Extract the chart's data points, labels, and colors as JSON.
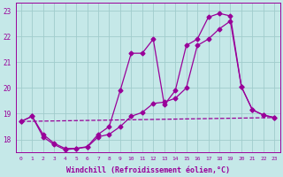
{
  "xlabel": "Windchill (Refroidissement éolien,°C)",
  "bg_color": "#c5e8e8",
  "line_color": "#990099",
  "grid_color": "#a0cccc",
  "xlim": [
    -0.5,
    23.5
  ],
  "ylim": [
    17.5,
    23.3
  ],
  "yticks": [
    18,
    19,
    20,
    21,
    22,
    23
  ],
  "xticks": [
    0,
    1,
    2,
    3,
    4,
    5,
    6,
    7,
    8,
    9,
    10,
    11,
    12,
    13,
    14,
    15,
    16,
    17,
    18,
    19,
    20,
    21,
    22,
    23
  ],
  "line1_x": [
    0,
    1,
    2,
    3,
    4,
    5,
    6,
    7,
    8,
    9,
    10,
    11,
    12,
    13,
    14,
    15,
    16,
    17,
    18,
    19,
    20,
    21,
    22,
    23
  ],
  "line1_y": [
    18.7,
    18.9,
    18.1,
    17.8,
    17.6,
    17.65,
    17.7,
    18.1,
    18.2,
    18.5,
    18.9,
    19.05,
    19.4,
    19.45,
    19.6,
    20.0,
    21.65,
    21.9,
    22.3,
    22.6,
    20.05,
    19.15,
    18.95,
    18.85
  ],
  "line2_x": [
    0,
    1,
    2,
    3,
    4,
    5,
    6,
    7,
    8,
    9,
    10,
    11,
    12,
    13,
    14,
    15,
    16,
    17,
    18,
    19,
    20,
    21,
    22,
    23
  ],
  "line2_y": [
    18.7,
    18.9,
    18.2,
    17.85,
    17.65,
    17.65,
    17.72,
    18.2,
    18.5,
    19.9,
    21.35,
    21.35,
    21.9,
    19.35,
    19.9,
    21.65,
    21.9,
    22.75,
    22.9,
    22.8,
    20.05,
    19.15,
    18.95,
    18.85
  ],
  "line3_x": [
    0,
    23
  ],
  "line3_y": [
    18.7,
    18.85
  ],
  "marker_size": 2.5,
  "linewidth": 0.9,
  "tick_fontsize": 5.5,
  "xlabel_fontsize": 6.0
}
